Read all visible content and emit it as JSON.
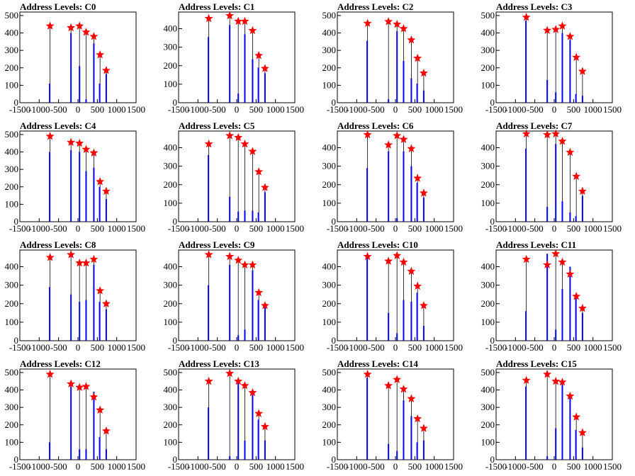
{
  "colors": {
    "histogram": "#0000ff",
    "peak_marker": "#ff0000",
    "axis": "#000000",
    "background": "#ffffff"
  },
  "x_ticks": [
    -1500,
    -1000,
    -500,
    0,
    500,
    1000,
    1500
  ],
  "chart_data": [
    {
      "type": "bar",
      "title": "Address Levels: C0",
      "xlim": [
        -1500,
        1500
      ],
      "ylim": [
        0,
        520
      ],
      "yticks": [
        0,
        100,
        200,
        300,
        400,
        500
      ],
      "peaks": [
        {
          "x": -720,
          "y": 440
        },
        {
          "x": -180,
          "y": 430
        },
        {
          "x": 40,
          "y": 440
        },
        {
          "x": 210,
          "y": 405
        },
        {
          "x": 410,
          "y": 380
        },
        {
          "x": 570,
          "y": 275
        },
        {
          "x": 730,
          "y": 185
        }
      ],
      "bars": [
        {
          "x": -730,
          "y": 110
        },
        {
          "x": -180,
          "y": 400
        },
        {
          "x": 40,
          "y": 210
        },
        {
          "x": 210,
          "y": 20
        },
        {
          "x": 410,
          "y": 340
        },
        {
          "x": 560,
          "y": 110
        },
        {
          "x": 730,
          "y": 165
        }
      ]
    },
    {
      "type": "bar",
      "title": "Address Levels: C1",
      "xlim": [
        -1500,
        1500
      ],
      "ylim": [
        0,
        490
      ],
      "yticks": [
        0,
        100,
        200,
        300,
        400
      ],
      "peaks": [
        {
          "x": -720,
          "y": 455
        },
        {
          "x": -180,
          "y": 470
        },
        {
          "x": 40,
          "y": 440
        },
        {
          "x": 210,
          "y": 440
        },
        {
          "x": 410,
          "y": 390
        },
        {
          "x": 570,
          "y": 255
        },
        {
          "x": 730,
          "y": 185
        }
      ],
      "bars": [
        {
          "x": -730,
          "y": 355
        },
        {
          "x": -180,
          "y": 420
        },
        {
          "x": 40,
          "y": 50
        },
        {
          "x": 210,
          "y": 370
        },
        {
          "x": 410,
          "y": 235
        },
        {
          "x": 560,
          "y": 190
        },
        {
          "x": 730,
          "y": 160
        }
      ]
    },
    {
      "type": "bar",
      "title": "Address Levels: C2",
      "xlim": [
        -1500,
        1500
      ],
      "ylim": [
        0,
        520
      ],
      "yticks": [
        0,
        100,
        200,
        300,
        400,
        500
      ],
      "peaks": [
        {
          "x": -720,
          "y": 455
        },
        {
          "x": -180,
          "y": 465
        },
        {
          "x": 40,
          "y": 450
        },
        {
          "x": 210,
          "y": 425
        },
        {
          "x": 410,
          "y": 360
        },
        {
          "x": 570,
          "y": 255
        },
        {
          "x": 730,
          "y": 170
        }
      ],
      "bars": [
        {
          "x": -730,
          "y": 355
        },
        {
          "x": -180,
          "y": 20
        },
        {
          "x": 40,
          "y": 410
        },
        {
          "x": 210,
          "y": 240
        },
        {
          "x": 410,
          "y": 140
        },
        {
          "x": 560,
          "y": 110
        },
        {
          "x": 730,
          "y": 70
        }
      ]
    },
    {
      "type": "bar",
      "title": "Address Levels: C3",
      "xlim": [
        -1500,
        1500
      ],
      "ylim": [
        0,
        520
      ],
      "yticks": [
        0,
        100,
        200,
        300,
        400,
        500
      ],
      "peaks": [
        {
          "x": -720,
          "y": 490
        },
        {
          "x": -180,
          "y": 415
        },
        {
          "x": 40,
          "y": 420
        },
        {
          "x": 210,
          "y": 440
        },
        {
          "x": 410,
          "y": 380
        },
        {
          "x": 570,
          "y": 260
        },
        {
          "x": 730,
          "y": 180
        }
      ],
      "bars": [
        {
          "x": -730,
          "y": 470
        },
        {
          "x": -180,
          "y": 130
        },
        {
          "x": 40,
          "y": 60
        },
        {
          "x": 210,
          "y": 400
        },
        {
          "x": 410,
          "y": 360
        },
        {
          "x": 560,
          "y": 50
        },
        {
          "x": 730,
          "y": 40
        }
      ]
    },
    {
      "type": "bar",
      "title": "Address Levels: C4",
      "xlim": [
        -1500,
        1500
      ],
      "ylim": [
        0,
        520
      ],
      "yticks": [
        0,
        100,
        200,
        300,
        400,
        500
      ],
      "peaks": [
        {
          "x": -720,
          "y": 490
        },
        {
          "x": -180,
          "y": 455
        },
        {
          "x": 40,
          "y": 450
        },
        {
          "x": 210,
          "y": 415
        },
        {
          "x": 410,
          "y": 395
        },
        {
          "x": 570,
          "y": 230
        },
        {
          "x": 730,
          "y": 175
        }
      ],
      "bars": [
        {
          "x": -730,
          "y": 400
        },
        {
          "x": -180,
          "y": 410
        },
        {
          "x": 40,
          "y": 400
        },
        {
          "x": 210,
          "y": 290
        },
        {
          "x": 410,
          "y": 310
        },
        {
          "x": 560,
          "y": 200
        },
        {
          "x": 730,
          "y": 130
        }
      ]
    },
    {
      "type": "bar",
      "title": "Address Levels: C5",
      "xlim": [
        -1500,
        1500
      ],
      "ylim": [
        0,
        490
      ],
      "yticks": [
        0,
        100,
        200,
        300,
        400
      ],
      "peaks": [
        {
          "x": -720,
          "y": 420
        },
        {
          "x": -180,
          "y": 465
        },
        {
          "x": 40,
          "y": 455
        },
        {
          "x": 210,
          "y": 420
        },
        {
          "x": 410,
          "y": 380
        },
        {
          "x": 570,
          "y": 270
        },
        {
          "x": 730,
          "y": 185
        }
      ],
      "bars": [
        {
          "x": -730,
          "y": 360
        },
        {
          "x": -180,
          "y": 135
        },
        {
          "x": 40,
          "y": 55
        },
        {
          "x": 210,
          "y": 60
        },
        {
          "x": 410,
          "y": 60
        },
        {
          "x": 560,
          "y": 50
        },
        {
          "x": 730,
          "y": 160
        }
      ]
    },
    {
      "type": "bar",
      "title": "Address Levels: C6",
      "xlim": [
        -1500,
        1500
      ],
      "ylim": [
        0,
        490
      ],
      "yticks": [
        0,
        100,
        200,
        300,
        400
      ],
      "peaks": [
        {
          "x": -720,
          "y": 470
        },
        {
          "x": -180,
          "y": 415
        },
        {
          "x": 40,
          "y": 465
        },
        {
          "x": 210,
          "y": 445
        },
        {
          "x": 410,
          "y": 395
        },
        {
          "x": 570,
          "y": 235
        },
        {
          "x": 730,
          "y": 155
        }
      ],
      "bars": [
        {
          "x": -730,
          "y": 290
        },
        {
          "x": -180,
          "y": 380
        },
        {
          "x": 40,
          "y": 20
        },
        {
          "x": 210,
          "y": 380
        },
        {
          "x": 410,
          "y": 300
        },
        {
          "x": 560,
          "y": 210
        },
        {
          "x": 730,
          "y": 130
        }
      ]
    },
    {
      "type": "bar",
      "title": "Address Levels: C7",
      "xlim": [
        -1500,
        1500
      ],
      "ylim": [
        0,
        490
      ],
      "yticks": [
        0,
        100,
        200,
        300,
        400
      ],
      "peaks": [
        {
          "x": -720,
          "y": 475
        },
        {
          "x": -180,
          "y": 470
        },
        {
          "x": 40,
          "y": 475
        },
        {
          "x": 210,
          "y": 435
        },
        {
          "x": 410,
          "y": 375
        },
        {
          "x": 570,
          "y": 245
        },
        {
          "x": 730,
          "y": 165
        }
      ],
      "bars": [
        {
          "x": -730,
          "y": 395
        },
        {
          "x": -180,
          "y": 80
        },
        {
          "x": 40,
          "y": 420
        },
        {
          "x": 210,
          "y": 110
        },
        {
          "x": 410,
          "y": 50
        },
        {
          "x": 560,
          "y": 30
        },
        {
          "x": 730,
          "y": 140
        }
      ]
    },
    {
      "type": "bar",
      "title": "Address Levels: C8",
      "xlim": [
        -1500,
        1500
      ],
      "ylim": [
        0,
        490
      ],
      "yticks": [
        0,
        100,
        200,
        300,
        400
      ],
      "peaks": [
        {
          "x": -720,
          "y": 450
        },
        {
          "x": -180,
          "y": 465
        },
        {
          "x": 40,
          "y": 420
        },
        {
          "x": 210,
          "y": 420
        },
        {
          "x": 410,
          "y": 440
        },
        {
          "x": 570,
          "y": 270
        },
        {
          "x": 730,
          "y": 200
        }
      ],
      "bars": [
        {
          "x": -730,
          "y": 290
        },
        {
          "x": -180,
          "y": 250
        },
        {
          "x": 40,
          "y": 210
        },
        {
          "x": 210,
          "y": 220
        },
        {
          "x": 410,
          "y": 410
        },
        {
          "x": 560,
          "y": 210
        },
        {
          "x": 730,
          "y": 170
        }
      ]
    },
    {
      "type": "bar",
      "title": "Address Levels: C9",
      "xlim": [
        -1500,
        1500
      ],
      "ylim": [
        0,
        490
      ],
      "yticks": [
        0,
        100,
        200,
        300,
        400
      ],
      "peaks": [
        {
          "x": -720,
          "y": 465
        },
        {
          "x": -180,
          "y": 455
        },
        {
          "x": 40,
          "y": 435
        },
        {
          "x": 210,
          "y": 410
        },
        {
          "x": 410,
          "y": 410
        },
        {
          "x": 570,
          "y": 260
        },
        {
          "x": 730,
          "y": 190
        }
      ],
      "bars": [
        {
          "x": -730,
          "y": 300
        },
        {
          "x": -180,
          "y": 410
        },
        {
          "x": 40,
          "y": 30
        },
        {
          "x": 210,
          "y": 60
        },
        {
          "x": 410,
          "y": 380
        },
        {
          "x": 560,
          "y": 220
        },
        {
          "x": 730,
          "y": 200
        }
      ]
    },
    {
      "type": "bar",
      "title": "Address Levels: C10",
      "xlim": [
        -1500,
        1500
      ],
      "ylim": [
        0,
        490
      ],
      "yticks": [
        0,
        100,
        200,
        300,
        400
      ],
      "peaks": [
        {
          "x": -720,
          "y": 455
        },
        {
          "x": -180,
          "y": 430
        },
        {
          "x": 40,
          "y": 460
        },
        {
          "x": 210,
          "y": 425
        },
        {
          "x": 410,
          "y": 375
        },
        {
          "x": 570,
          "y": 295
        },
        {
          "x": 730,
          "y": 190
        }
      ],
      "bars": [
        {
          "x": -730,
          "y": 450
        },
        {
          "x": -180,
          "y": 150
        },
        {
          "x": 40,
          "y": 40
        },
        {
          "x": 210,
          "y": 220
        },
        {
          "x": 410,
          "y": 210
        },
        {
          "x": 560,
          "y": 260
        },
        {
          "x": 730,
          "y": 80
        }
      ]
    },
    {
      "type": "bar",
      "title": "Address Levels: C11",
      "xlim": [
        -1500,
        1500
      ],
      "ylim": [
        0,
        490
      ],
      "yticks": [
        0,
        100,
        200,
        300,
        400
      ],
      "peaks": [
        {
          "x": -720,
          "y": 440
        },
        {
          "x": -180,
          "y": 410
        },
        {
          "x": 40,
          "y": 470
        },
        {
          "x": 210,
          "y": 425
        },
        {
          "x": 410,
          "y": 360
        },
        {
          "x": 570,
          "y": 240
        },
        {
          "x": 730,
          "y": 175
        }
      ],
      "bars": [
        {
          "x": -730,
          "y": 160
        },
        {
          "x": -180,
          "y": 470
        },
        {
          "x": 40,
          "y": 60
        },
        {
          "x": 210,
          "y": 280
        },
        {
          "x": 410,
          "y": 400
        },
        {
          "x": 560,
          "y": 230
        },
        {
          "x": 730,
          "y": 150
        }
      ]
    },
    {
      "type": "bar",
      "title": "Address Levels: C12",
      "xlim": [
        -1500,
        1500
      ],
      "ylim": [
        0,
        520
      ],
      "yticks": [
        0,
        100,
        200,
        300,
        400,
        500
      ],
      "peaks": [
        {
          "x": -720,
          "y": 490
        },
        {
          "x": -180,
          "y": 435
        },
        {
          "x": 40,
          "y": 415
        },
        {
          "x": 210,
          "y": 420
        },
        {
          "x": 410,
          "y": 360
        },
        {
          "x": 570,
          "y": 285
        },
        {
          "x": 730,
          "y": 165
        }
      ],
      "bars": [
        {
          "x": -730,
          "y": 100
        },
        {
          "x": -180,
          "y": 420
        },
        {
          "x": 40,
          "y": 60
        },
        {
          "x": 210,
          "y": 60
        },
        {
          "x": 410,
          "y": 390
        },
        {
          "x": 560,
          "y": 130
        },
        {
          "x": 730,
          "y": 60
        }
      ]
    },
    {
      "type": "bar",
      "title": "Address Levels: C13",
      "xlim": [
        -1500,
        1500
      ],
      "ylim": [
        0,
        520
      ],
      "yticks": [
        0,
        100,
        200,
        300,
        400,
        500
      ],
      "peaks": [
        {
          "x": -720,
          "y": 450
        },
        {
          "x": -180,
          "y": 495
        },
        {
          "x": 40,
          "y": 450
        },
        {
          "x": 210,
          "y": 425
        },
        {
          "x": 410,
          "y": 385
        },
        {
          "x": 570,
          "y": 265
        },
        {
          "x": 730,
          "y": 190
        }
      ],
      "bars": [
        {
          "x": -730,
          "y": 300
        },
        {
          "x": -180,
          "y": 20
        },
        {
          "x": 40,
          "y": 450
        },
        {
          "x": 210,
          "y": 110
        },
        {
          "x": 410,
          "y": 370
        },
        {
          "x": 560,
          "y": 230
        },
        {
          "x": 730,
          "y": 110
        }
      ]
    },
    {
      "type": "bar",
      "title": "Address Levels: C14",
      "xlim": [
        -1500,
        1500
      ],
      "ylim": [
        0,
        520
      ],
      "yticks": [
        0,
        100,
        200,
        300,
        400,
        500
      ],
      "peaks": [
        {
          "x": -720,
          "y": 490
        },
        {
          "x": -180,
          "y": 425
        },
        {
          "x": 40,
          "y": 460
        },
        {
          "x": 210,
          "y": 405
        },
        {
          "x": 410,
          "y": 350
        },
        {
          "x": 570,
          "y": 235
        },
        {
          "x": 730,
          "y": 180
        }
      ],
      "bars": [
        {
          "x": -730,
          "y": 470
        },
        {
          "x": -180,
          "y": 90
        },
        {
          "x": 40,
          "y": 50
        },
        {
          "x": 210,
          "y": 340
        },
        {
          "x": 410,
          "y": 250
        },
        {
          "x": 560,
          "y": 100
        },
        {
          "x": 730,
          "y": 110
        }
      ]
    },
    {
      "type": "bar",
      "title": "Address Levels: C15",
      "xlim": [
        -1500,
        1500
      ],
      "ylim": [
        0,
        520
      ],
      "yticks": [
        0,
        100,
        200,
        300,
        400,
        500
      ],
      "peaks": [
        {
          "x": -720,
          "y": 455
        },
        {
          "x": -180,
          "y": 490
        },
        {
          "x": 40,
          "y": 450
        },
        {
          "x": 210,
          "y": 445
        },
        {
          "x": 410,
          "y": 365
        },
        {
          "x": 570,
          "y": 245
        },
        {
          "x": 730,
          "y": 155
        }
      ],
      "bars": [
        {
          "x": -730,
          "y": 420
        },
        {
          "x": -180,
          "y": 20
        },
        {
          "x": 40,
          "y": 180
        },
        {
          "x": 210,
          "y": 430
        },
        {
          "x": 410,
          "y": 380
        },
        {
          "x": 560,
          "y": 170
        },
        {
          "x": 730,
          "y": 70
        }
      ]
    }
  ]
}
